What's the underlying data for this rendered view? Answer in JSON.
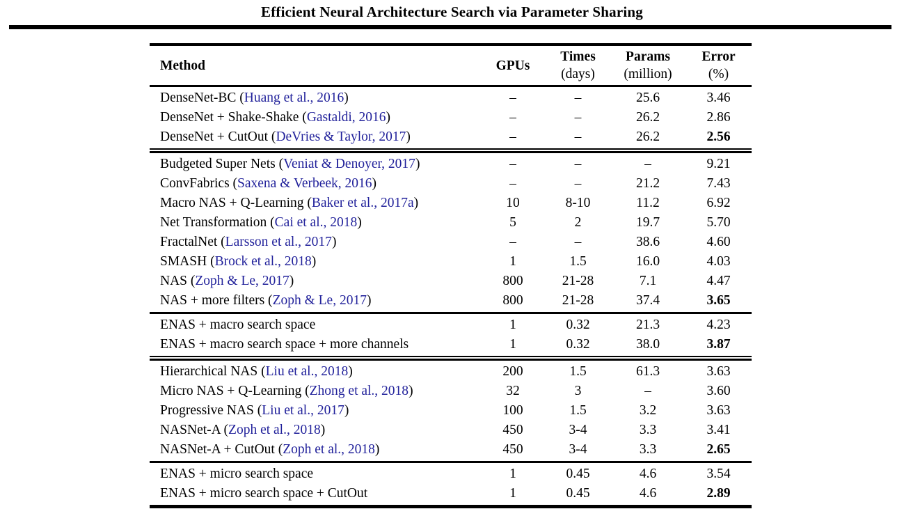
{
  "paper_title": "Efficient Neural Architecture Search via Parameter Sharing",
  "table": {
    "citation_color": "#22229b",
    "rule_color": "#000000",
    "missing_value_dash": "–",
    "columns": [
      {
        "label": "Method",
        "sub": ""
      },
      {
        "label": "GPUs",
        "sub": ""
      },
      {
        "label": "Times",
        "sub": "(days)"
      },
      {
        "label": "Params",
        "sub": "(million)"
      },
      {
        "label": "Error",
        "sub": "(%)"
      }
    ],
    "groups": [
      {
        "separator_after": "double",
        "rows": [
          {
            "pre": "DenseNet-BC (",
            "cite": "Huang et al., 2016",
            "post": ")",
            "gpus": "–",
            "times": "–",
            "params": "25.6",
            "error": "3.46",
            "error_bold": false
          },
          {
            "pre": "DenseNet + Shake-Shake (",
            "cite": "Gastaldi, 2016",
            "post": ")",
            "gpus": "–",
            "times": "–",
            "params": "26.2",
            "error": "2.86",
            "error_bold": false
          },
          {
            "pre": "DenseNet + CutOut (",
            "cite": "DeVries & Taylor, 2017",
            "post": ")",
            "gpus": "–",
            "times": "–",
            "params": "26.2",
            "error": "2.56",
            "error_bold": true
          }
        ]
      },
      {
        "separator_after": "single",
        "rows": [
          {
            "pre": "Budgeted Super Nets (",
            "cite": "Veniat & Denoyer, 2017",
            "post": ")",
            "gpus": "–",
            "times": "–",
            "params": "–",
            "error": "9.21",
            "error_bold": false
          },
          {
            "pre": "ConvFabrics (",
            "cite": "Saxena & Verbeek, 2016",
            "post": ")",
            "gpus": "–",
            "times": "–",
            "params": "21.2",
            "error": "7.43",
            "error_bold": false
          },
          {
            "pre": "Macro NAS + Q-Learning (",
            "cite": "Baker et al., 2017a",
            "post": ")",
            "gpus": "10",
            "times": "8-10",
            "params": "11.2",
            "error": "6.92",
            "error_bold": false
          },
          {
            "pre": "Net Transformation (",
            "cite": "Cai et al., 2018",
            "post": ")",
            "gpus": "5",
            "times": "2",
            "params": "19.7",
            "error": "5.70",
            "error_bold": false
          },
          {
            "pre": "FractalNet (",
            "cite": "Larsson et al., 2017",
            "post": ")",
            "gpus": "–",
            "times": "–",
            "params": "38.6",
            "error": "4.60",
            "error_bold": false
          },
          {
            "pre": "SMASH (",
            "cite": "Brock et al., 2018",
            "post": ")",
            "gpus": "1",
            "times": "1.5",
            "params": "16.0",
            "error": "4.03",
            "error_bold": false
          },
          {
            "pre": "NAS (",
            "cite": "Zoph & Le, 2017",
            "post": ")",
            "gpus": "800",
            "times": "21-28",
            "params": "7.1",
            "error": "4.47",
            "error_bold": false
          },
          {
            "pre": "NAS + more filters (",
            "cite": "Zoph & Le, 2017",
            "post": ")",
            "gpus": "800",
            "times": "21-28",
            "params": "37.4",
            "error": "3.65",
            "error_bold": true
          }
        ]
      },
      {
        "separator_after": "double",
        "rows": [
          {
            "pre": "ENAS + macro search space",
            "cite": "",
            "post": "",
            "gpus": "1",
            "times": "0.32",
            "params": "21.3",
            "error": "4.23",
            "error_bold": false
          },
          {
            "pre": "ENAS + macro search space + more channels",
            "cite": "",
            "post": "",
            "gpus": "1",
            "times": "0.32",
            "params": "38.0",
            "error": "3.87",
            "error_bold": true
          }
        ]
      },
      {
        "separator_after": "single",
        "rows": [
          {
            "pre": "Hierarchical NAS (",
            "cite": "Liu et al., 2018",
            "post": ")",
            "gpus": "200",
            "times": "1.5",
            "params": "61.3",
            "error": "3.63",
            "error_bold": false
          },
          {
            "pre": "Micro NAS + Q-Learning (",
            "cite": "Zhong et al., 2018",
            "post": ")",
            "gpus": "32",
            "times": "3",
            "params": "–",
            "error": "3.60",
            "error_bold": false
          },
          {
            "pre": "Progressive NAS (",
            "cite": "Liu et al., 2017",
            "post": ")",
            "gpus": "100",
            "times": "1.5",
            "params": "3.2",
            "error": "3.63",
            "error_bold": false
          },
          {
            "pre": "NASNet-A (",
            "cite": "Zoph et al., 2018",
            "post": ")",
            "gpus": "450",
            "times": "3-4",
            "params": "3.3",
            "error": "3.41",
            "error_bold": false
          },
          {
            "pre": "NASNet-A + CutOut (",
            "cite": "Zoph et al., 2018",
            "post": ")",
            "gpus": "450",
            "times": "3-4",
            "params": "3.3",
            "error": "2.65",
            "error_bold": true
          }
        ]
      },
      {
        "separator_after": "",
        "rows": [
          {
            "pre": "ENAS + micro search space",
            "cite": "",
            "post": "",
            "gpus": "1",
            "times": "0.45",
            "params": "4.6",
            "error": "3.54",
            "error_bold": false
          },
          {
            "pre": "ENAS + micro search space + CutOut",
            "cite": "",
            "post": "",
            "gpus": "1",
            "times": "0.45",
            "params": "4.6",
            "error": "2.89",
            "error_bold": true
          }
        ]
      }
    ]
  }
}
